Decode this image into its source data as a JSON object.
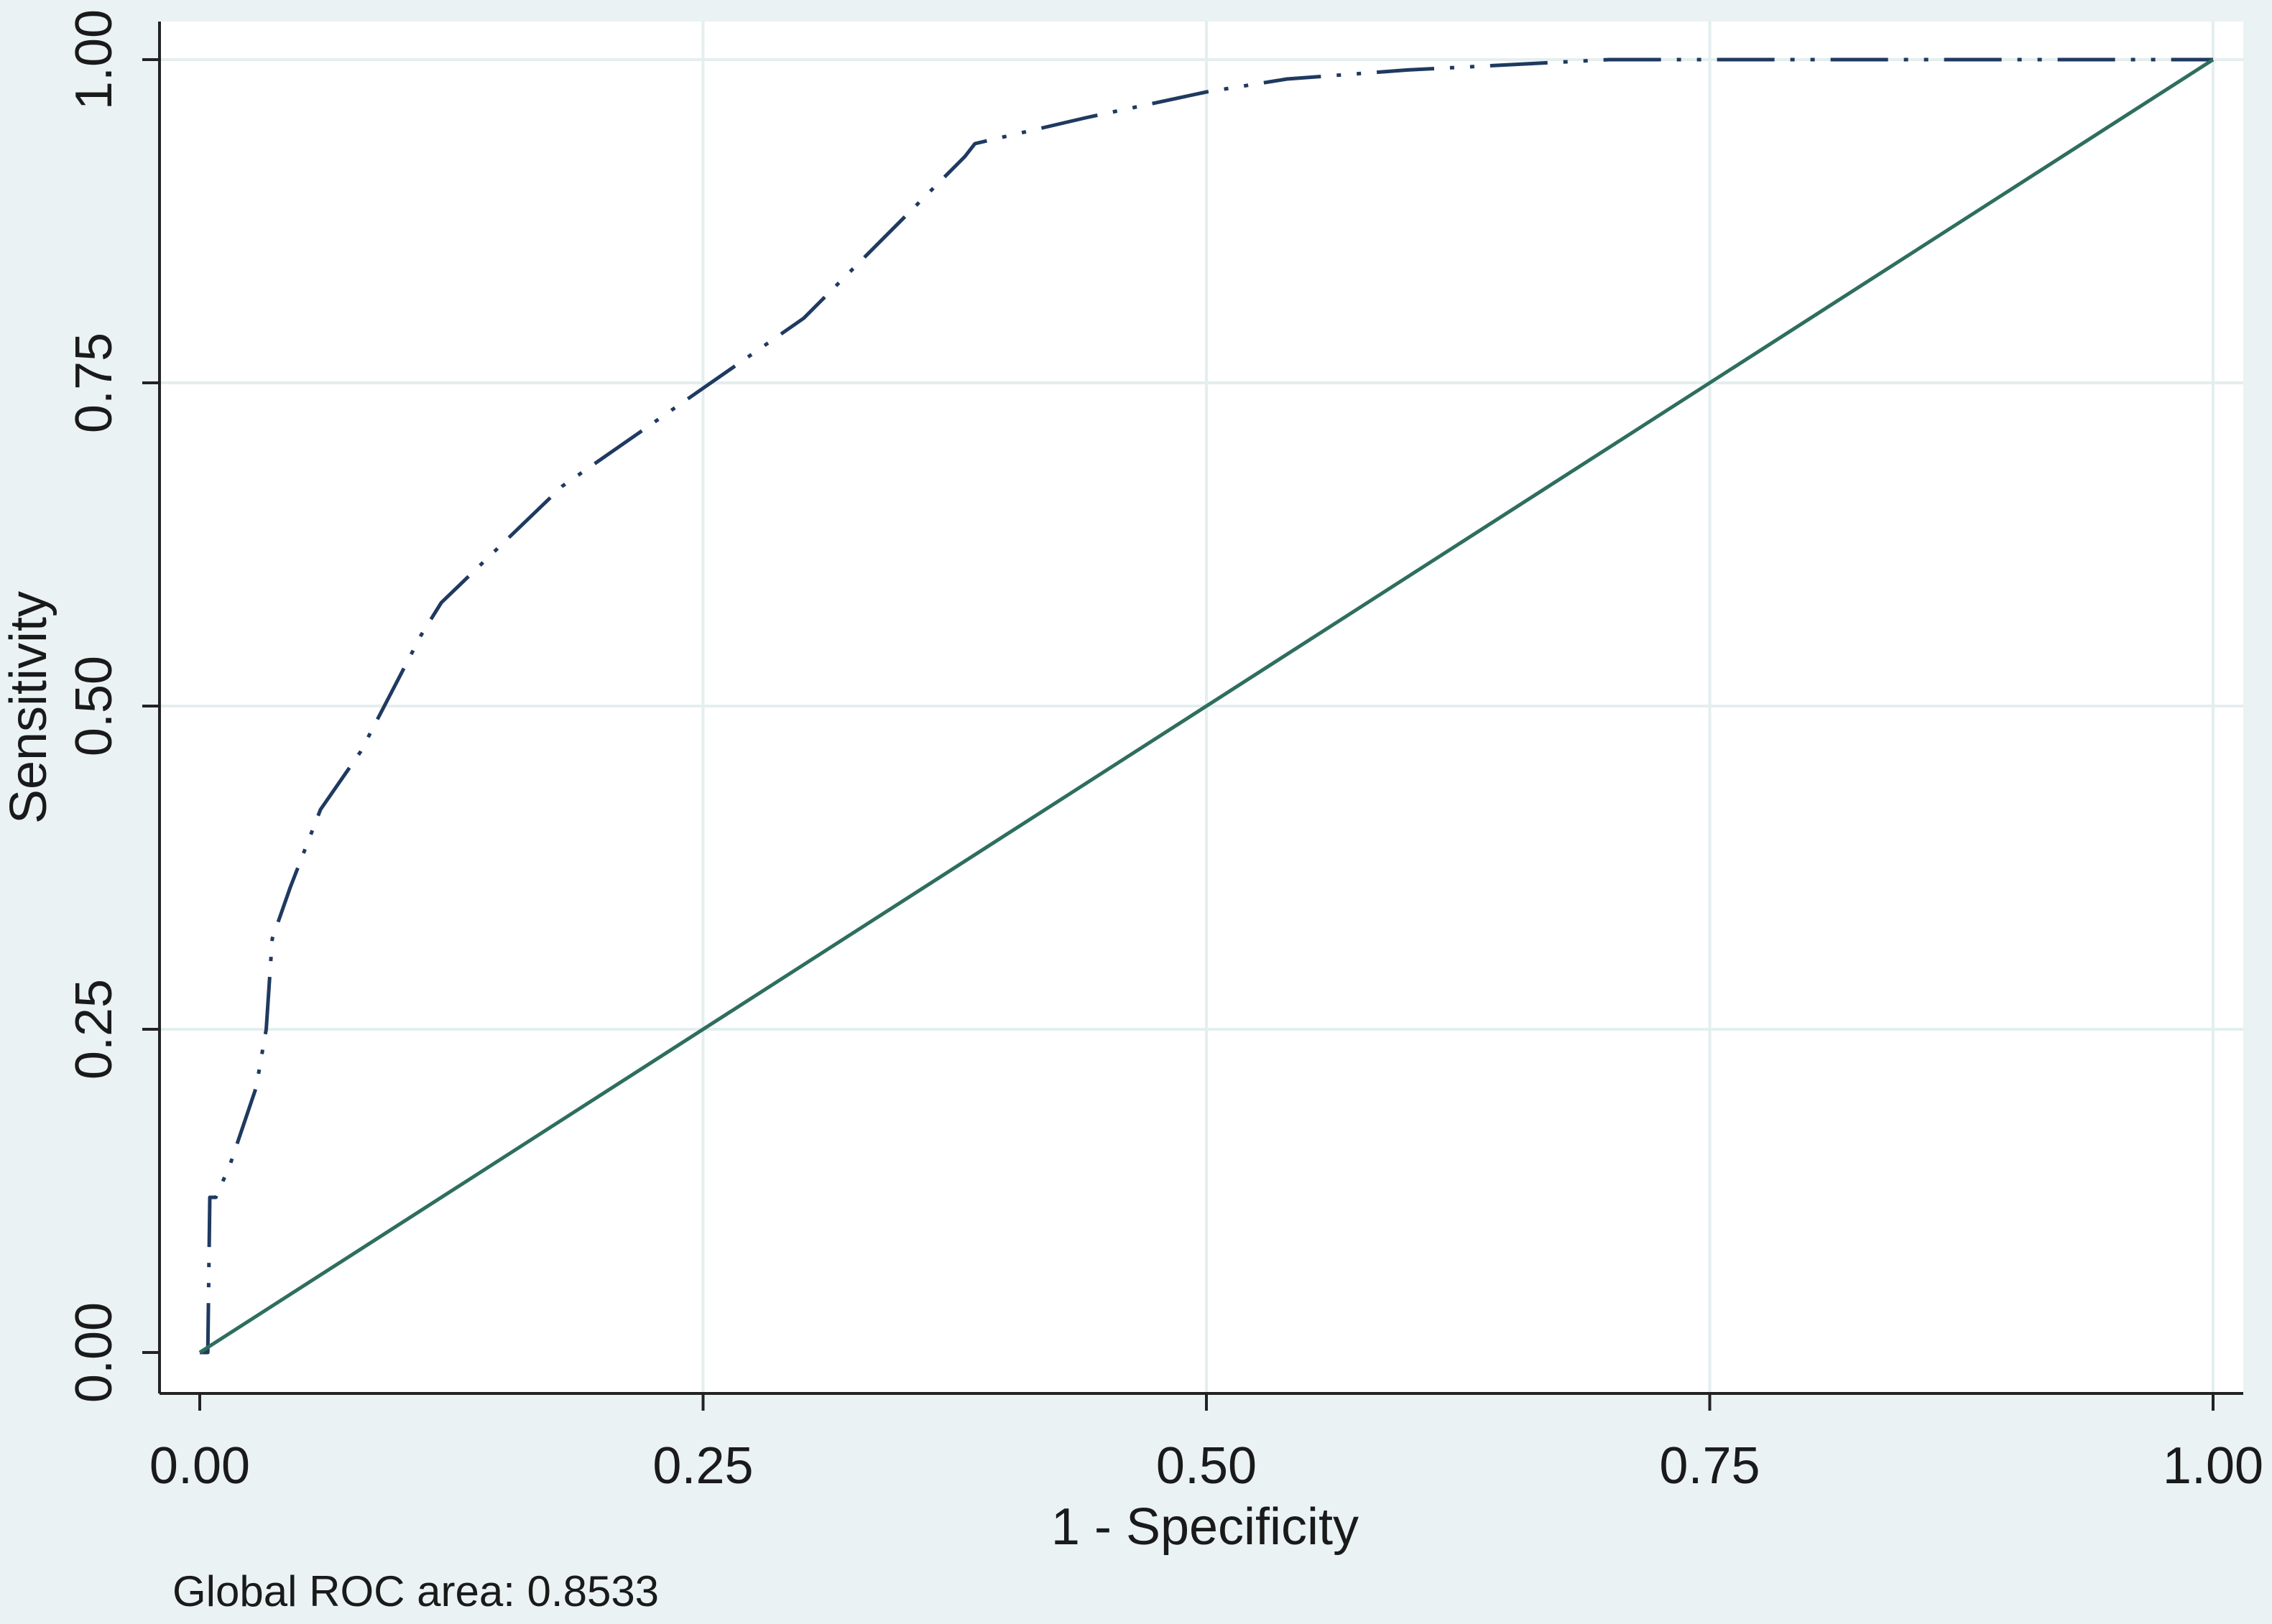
{
  "chart_data": {
    "type": "line",
    "xlabel": "1 - Specificity",
    "ylabel": "Sensitivity",
    "xlim": [
      0,
      1
    ],
    "ylim": [
      0,
      1
    ],
    "x_ticks": [
      0,
      0.25,
      0.5,
      0.75,
      1
    ],
    "x_tick_labels": [
      "0.00",
      "0.25",
      "0.50",
      "0.75",
      "1.00"
    ],
    "y_ticks": [
      0,
      0.25,
      0.5,
      0.75,
      1
    ],
    "y_tick_labels": [
      "0.00",
      "0.25",
      "0.50",
      "0.75",
      "1.00"
    ],
    "grid": true,
    "legend": "none",
    "series": [
      {
        "style": "dash-dot-dot",
        "color": "#1f3a60",
        "points": [
          [
            0,
            0
          ],
          [
            0.004,
            0
          ],
          [
            0.005,
            0.12
          ],
          [
            0.008,
            0.12
          ],
          [
            0.015,
            0.145
          ],
          [
            0.028,
            0.205
          ],
          [
            0.033,
            0.25
          ],
          [
            0.036,
            0.32
          ],
          [
            0.045,
            0.36
          ],
          [
            0.06,
            0.42
          ],
          [
            0.08,
            0.465
          ],
          [
            0.11,
            0.555
          ],
          [
            0.12,
            0.58
          ],
          [
            0.18,
            0.67
          ],
          [
            0.3,
            0.8
          ],
          [
            0.38,
            0.925
          ],
          [
            0.385,
            0.935
          ],
          [
            0.44,
            0.955
          ],
          [
            0.5,
            0.975
          ],
          [
            0.54,
            0.985
          ],
          [
            0.6,
            0.992
          ],
          [
            0.7,
            1
          ],
          [
            0.8,
            1
          ],
          [
            1,
            1
          ]
        ]
      },
      {
        "style": "solid",
        "color": "#2e6e5e",
        "points": [
          [
            0,
            0
          ],
          [
            1,
            1
          ]
        ]
      }
    ],
    "annotation": "Global ROC area: 0.8533"
  }
}
